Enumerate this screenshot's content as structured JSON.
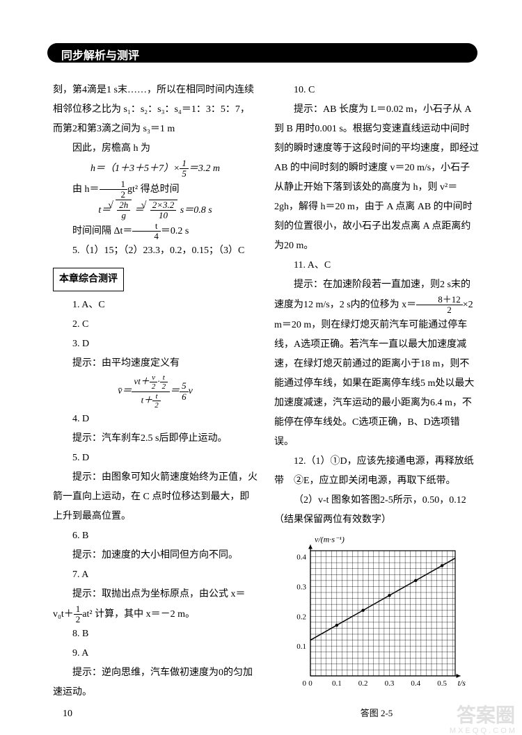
{
  "header": {
    "title": "同步解析与测评"
  },
  "left_column": {
    "p1": "刻，第4滴是1 s末……，所以在相同时间内连续相邻位移之比为 s₁：s₂：s₃：s₄＝1：3：5：7，而第2和第3滴之间为 s₃＝1 m",
    "p2": "因此，房檐高 h 为",
    "f1_left": "h＝（1＋3＋5＋7）×",
    "f1_num": "1",
    "f1_den": "5",
    "f1_right": "＝3.2 m",
    "p3_left": "由 h＝",
    "f2_num": "1",
    "f2_den": "2",
    "p3_right": "gt² 得总时间",
    "f3_left": "t＝",
    "f3_r1_num": "2h",
    "f3_r1_den": "g",
    "f3_mid": "＝",
    "f3_r2_num": "2×3.2",
    "f3_r2_den": "10",
    "f3_right": " s＝0.8 s",
    "p4_left": "时间间隔 Δt＝",
    "f4_num": "t",
    "f4_den": "4",
    "p4_right": "＝0.2 s",
    "p5": "5.（1）15；（2）23.3，0.2，0.15；（3）C",
    "section": "本章综合测评",
    "q1": "1. A、C",
    "q2": "2. C",
    "q3": "3. D",
    "q3hint": "提示：由平均速度定义有",
    "q3f_numpart1": "vt＋",
    "q3f_innum": "v",
    "q3f_inden": "2",
    "q3f_numpart2": "·",
    "q3f_in2num": "t",
    "q3f_in2den": "2",
    "q3f_den_left": "t＋",
    "q3f_den_num": "t",
    "q3f_den_den": "2",
    "q3f_result_num": "5",
    "q3f_result_den": "6",
    "q3f_v": "v",
    "q3f_vbar": "v̄＝",
    "q3f_eq": "＝",
    "q4": "4. D",
    "q4hint": "提示：汽车刹车2.5 s后即停止运动。",
    "q5": "5. D",
    "q5hint": "提示：由图象可知火箭速度始终为正值，火箭一直向上运动，在 C 点时位移达到最大，即上升到最高位置。",
    "q6": "6. B",
    "q6hint": "提示：加速度的大小相同但方向不同。",
    "q7": "7. A",
    "q7hint_part1": "提示：取抛出点为坐标原点，由公式 x＝",
    "q7hint_part2_left": "v₀t＋",
    "q7f_num": "1",
    "q7f_den": "2",
    "q7hint_part2_right": "at² 计算，其中 x＝－2 m。",
    "q8": "8. B",
    "q9": "9. A",
    "q9hint": "提示：逆向思维，汽车做初速度为0的匀加速运动。"
  },
  "right_column": {
    "q10": "10. C",
    "q10hint": "提示：AB 长度为 L＝0.02 m，小石子从 A 到 B 用时0.001 s。根据匀变速直线运动中间时刻的瞬时速度等于这段时间的平均速度，即经过 AB 的中间时刻的瞬时速度 v＝20 m/s，小石子从静止开始下落到该处的高度为 h，则 v²＝2gh，解得 h＝20 m，由于 A 点离 AB 的中间时刻的位置很小，故小石子出发点离 A 点距离约为20 m。",
    "q11": "11. A、C",
    "q11hint_p1": "提示：在加速阶段若一直加速，则2 s末的速度为12 m/s，2 s内的位移为 x＝",
    "q11f_num": "8＋12",
    "q11f_den": "2",
    "q11hint_p2": "×2 m＝20 m，则在绿灯熄灭前汽车可能通过停车线，A选项正确。若汽车一直以最大加速度减速，在绿灯熄灭前通过的距离小于18 m，则不能通过停车线，如果在距离停车线5 m处以最大加速度减速，汽车运动的最小距离为6.4 m，不能停在停车线处。C选项正确，B、D选项错误。",
    "q12p1": "12.（1）①D，应该先接通电源，再释放纸带　②E，应立即关闭电源，再取下纸带。",
    "q12p2": "（2）v-t 图象如答图2-5所示，0.50，0.12（结果保留两位有效数字）",
    "chart_caption": "答图 2-5",
    "chart": {
      "type": "line",
      "ylabel": "v/(m·s⁻¹)",
      "xlabel": "t/s",
      "xlim": [
        0,
        0.55
      ],
      "ylim": [
        0,
        0.42
      ],
      "xticks": [
        0,
        0.1,
        0.2,
        0.3,
        0.4,
        0.5
      ],
      "yticks": [
        0,
        0.1,
        0.2,
        0.3,
        0.4
      ],
      "points": [
        [
          0.1,
          0.17
        ],
        [
          0.2,
          0.22
        ],
        [
          0.3,
          0.27
        ],
        [
          0.4,
          0.32
        ],
        [
          0.5,
          0.37
        ]
      ],
      "point_color": "#000000",
      "line_color": "#000000",
      "grid_color": "#000000",
      "background_color": "#ffffff",
      "line_width": 1.5,
      "marker_size": 2.2
    }
  },
  "page_number": "10",
  "watermarks": {
    "main": "答案圈",
    "sub": "M X E Q Q . C O M"
  }
}
